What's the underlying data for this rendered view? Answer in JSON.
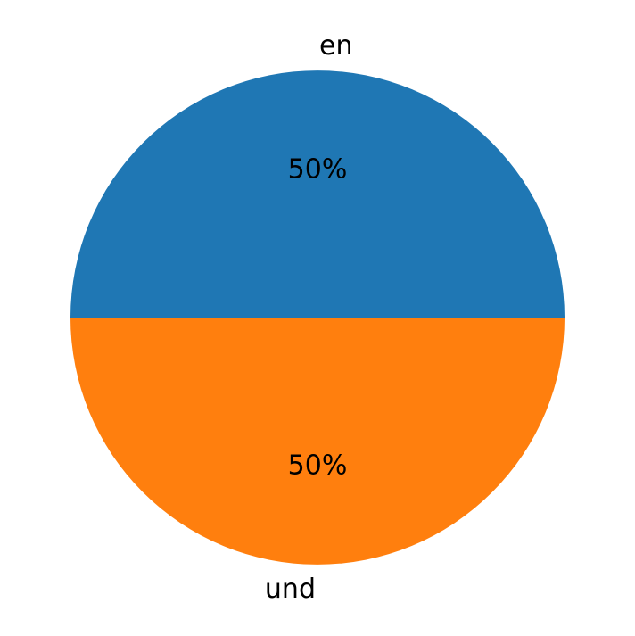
{
  "chart_data": {
    "type": "pie",
    "title": "",
    "categories": [
      "en",
      "und"
    ],
    "values": [
      50,
      50
    ],
    "percent_labels": [
      "50%",
      "50%"
    ],
    "colors": [
      "#1f77b4",
      "#ff7f0e"
    ],
    "start_angle_deg": 0,
    "direction": "counterclockwise",
    "legend": "none"
  }
}
